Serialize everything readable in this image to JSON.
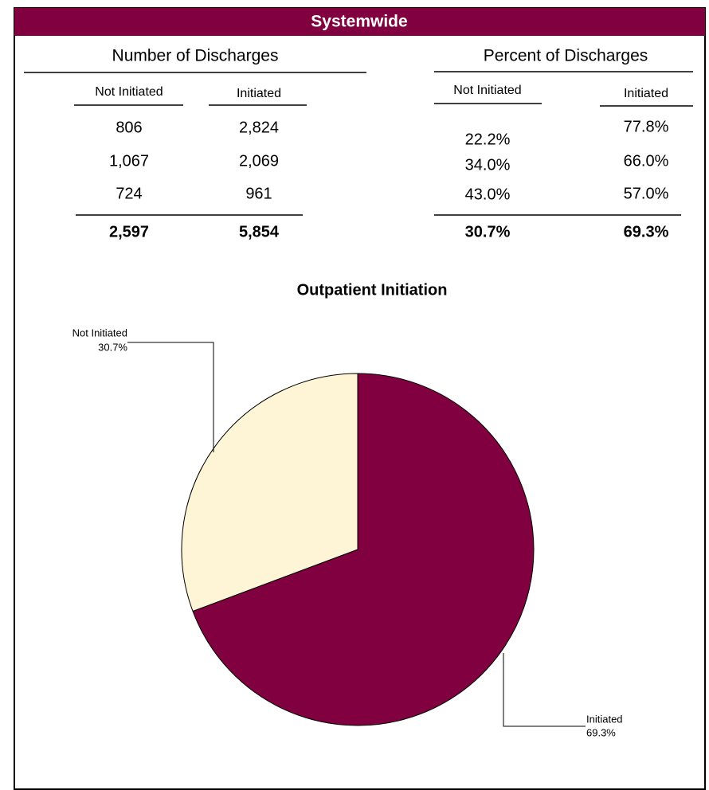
{
  "header": {
    "title": "Systemwide"
  },
  "table": {
    "number_heading": "Number of Discharges",
    "percent_heading": "Percent of Discharges",
    "columns": [
      "Not Initiated",
      "Initiated",
      "Not Initiated",
      "Initiated"
    ],
    "rows": [
      [
        "806",
        "2,824",
        "22.2%",
        "77.8%"
      ],
      [
        "1,067",
        "2,069",
        "34.0%",
        "66.0%"
      ],
      [
        "724",
        "961",
        "43.0%",
        "57.0%"
      ]
    ],
    "totals": [
      "2,597",
      "5,854",
      "30.7%",
      "69.3%"
    ]
  },
  "chart_data": {
    "type": "pie",
    "title": "Outpatient Initiation",
    "categories": [
      "Not Initiated",
      "Initiated"
    ],
    "values": [
      30.7,
      69.3
    ],
    "value_labels": [
      "30.7%",
      "69.3%"
    ],
    "colors": [
      "#fdf5d5",
      "#800040"
    ]
  }
}
